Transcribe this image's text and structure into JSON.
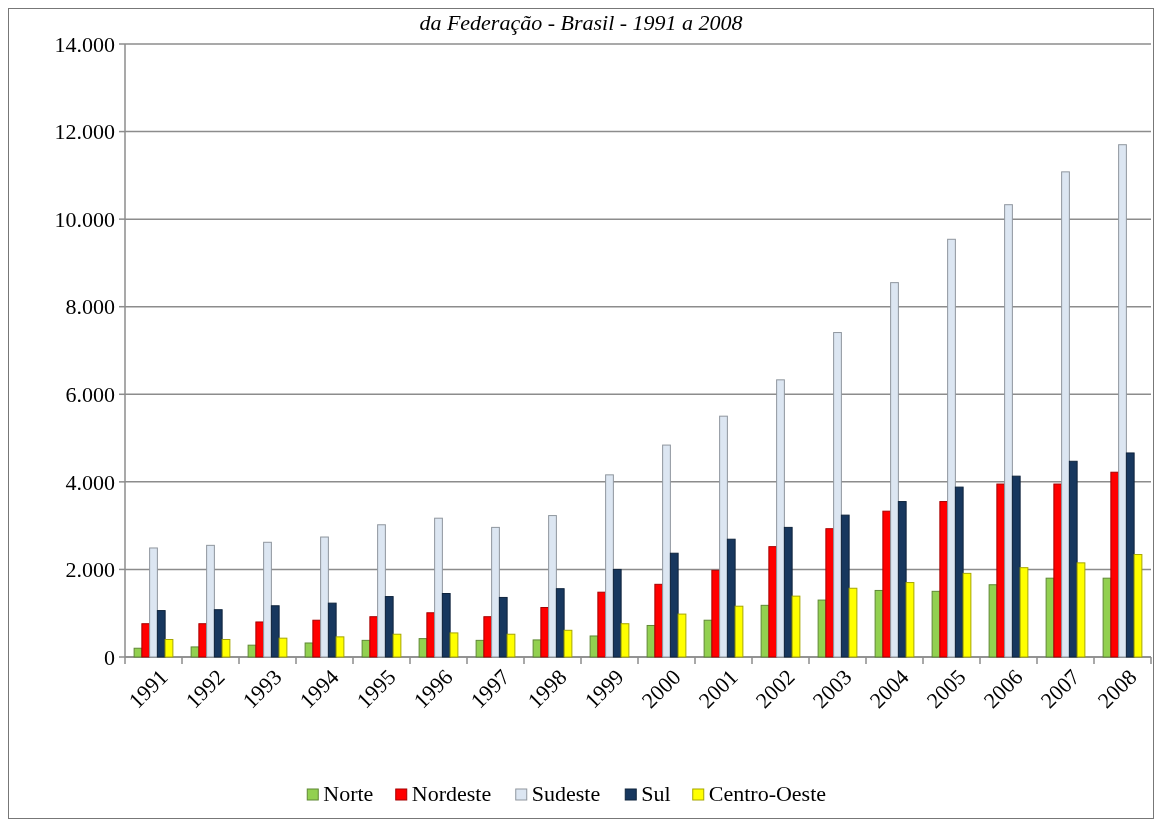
{
  "chart_data": {
    "type": "bar",
    "title": "da Federação - Brasil - 1991 a 2008",
    "categories": [
      "1991",
      "1992",
      "1993",
      "1994",
      "1995",
      "1996",
      "1997",
      "1998",
      "1999",
      "2000",
      "2001",
      "2002",
      "2003",
      "2004",
      "2005",
      "2006",
      "2007",
      "2008"
    ],
    "series": [
      {
        "name": "Norte",
        "color": "#92d050",
        "values": [
          200,
          230,
          270,
          320,
          380,
          420,
          380,
          390,
          480,
          720,
          840,
          1180,
          1300,
          1520,
          1500,
          1650,
          1800,
          1800
        ]
      },
      {
        "name": "Nordeste",
        "color": "#ff0000",
        "values": [
          760,
          760,
          800,
          840,
          920,
          1010,
          920,
          1130,
          1480,
          1660,
          1980,
          2520,
          2930,
          3330,
          3550,
          3950,
          3950,
          4220
        ]
      },
      {
        "name": "Sudeste",
        "color": "#dce6f2",
        "values": [
          2490,
          2550,
          2620,
          2740,
          3020,
          3170,
          2960,
          3230,
          4160,
          4840,
          5500,
          6330,
          7410,
          8550,
          9540,
          10330,
          11080,
          11700
        ]
      },
      {
        "name": "Sul",
        "color": "#17375e",
        "values": [
          1060,
          1080,
          1170,
          1230,
          1380,
          1450,
          1360,
          1560,
          2000,
          2370,
          2690,
          2960,
          3240,
          3550,
          3880,
          4130,
          4470,
          4660
        ]
      },
      {
        "name": "Centro-Oeste",
        "color": "#ffff00",
        "values": [
          400,
          400,
          430,
          460,
          520,
          550,
          520,
          610,
          760,
          980,
          1160,
          1390,
          1570,
          1700,
          1910,
          2040,
          2150,
          2340
        ]
      }
    ],
    "ylim": [
      0,
      14000
    ],
    "yticks": [
      {
        "value": 0,
        "label": "0"
      },
      {
        "value": 2000,
        "label": "2.000"
      },
      {
        "value": 4000,
        "label": "4.000"
      },
      {
        "value": 6000,
        "label": "6.000"
      },
      {
        "value": 8000,
        "label": "8.000"
      },
      {
        "value": 10000,
        "label": "10.000"
      },
      {
        "value": 12000,
        "label": "12.000"
      },
      {
        "value": 14000,
        "label": "14.000"
      }
    ],
    "grid": "y",
    "legend": "bottom"
  }
}
